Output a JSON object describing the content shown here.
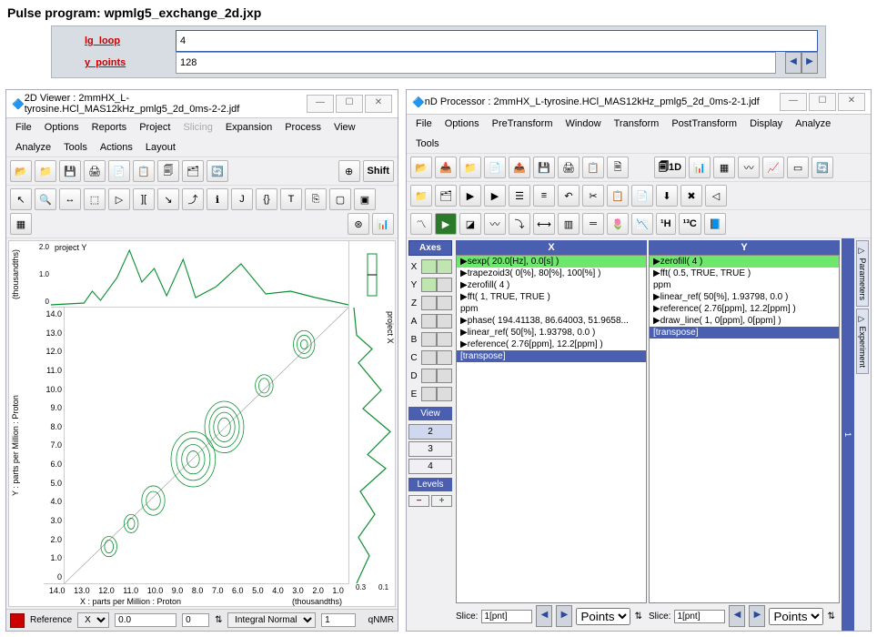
{
  "title": "Pulse program: wpmlg5_exchange_2d.jxp",
  "params": {
    "lg_loop": {
      "label": "lg_loop",
      "value": "4"
    },
    "y_points": {
      "label": "y_points",
      "value": "128"
    }
  },
  "viewer": {
    "title": "2D Viewer : 2mmHX_L-tyrosine.HCl_MAS12kHz_pmlg5_2d_0ms-2-2.jdf",
    "menus": [
      "File",
      "Options",
      "Reports",
      "Project",
      "Slicing",
      "Expansion",
      "Process",
      "View",
      "Analyze",
      "Tools",
      "Actions",
      "Layout"
    ],
    "x_ticks": [
      "14.0",
      "13.0",
      "12.0",
      "11.0",
      "10.0",
      "9.0",
      "8.0",
      "7.0",
      "6.0",
      "5.0",
      "4.0",
      "3.0",
      "2.0",
      "1.0"
    ],
    "xproj_ticks": [
      "0.3",
      "0.1"
    ],
    "y_ticks": [
      "14.0",
      "13.0",
      "12.0",
      "11.0",
      "10.0",
      "9.0",
      "8.0",
      "7.0",
      "6.0",
      "5.0",
      "4.0",
      "3.0",
      "2.0",
      "1.0",
      "0"
    ],
    "yproj_ticks": [
      "0",
      "1.0",
      "2.0"
    ],
    "y_axis_label": "Y : parts per Million : Proton",
    "yproj_unit": "(thousandths)",
    "x_axis_label": "X : parts per Million : Proton",
    "x_unit": "(thousandths)",
    "proj_y_label": "project Y",
    "proj_x_label": "project X",
    "status": {
      "ref": "Reference",
      "axis": "X",
      "v1": "0.0",
      "v2": "0",
      "int": "Integral Normal",
      "i2": "1",
      "qnmr": "qNMR"
    },
    "colors": {
      "trace": "#0a9030"
    }
  },
  "processor": {
    "title": "nD Processor : 2mmHX_L-tyrosine.HCl_MAS12kHz_pmlg5_2d_0ms-2-1.jdf",
    "menus": [
      "File",
      "Options",
      "PreTransform",
      "Window",
      "Transform",
      "PostTransform",
      "Display",
      "Analyze",
      "Tools"
    ],
    "headers": {
      "axes": "Axes",
      "x": "X",
      "y": "Y",
      "view": "View",
      "levels": "Levels"
    },
    "axes": [
      "X",
      "Y",
      "Z",
      "A",
      "B",
      "C",
      "D",
      "E"
    ],
    "views": [
      "2",
      "3",
      "4"
    ],
    "x_list": [
      {
        "t": "▶sexp( 20.0[Hz], 0.0[s] )",
        "c": "hl"
      },
      {
        "t": "▶trapezoid3( 0[%], 80[%], 100[%] )"
      },
      {
        "t": "▶zerofill( 4 )"
      },
      {
        "t": "▶fft( 1, TRUE, TRUE )"
      },
      {
        "t": "  ppm"
      },
      {
        "t": "▶phase( 194.41138, 86.64003, 51.9658..."
      },
      {
        "t": "▶linear_ref( 50[%], 1.93798, 0.0 )"
      },
      {
        "t": "▶reference( 2.76[ppm], 12.2[ppm] )"
      },
      {
        "t": "  [transpose]",
        "c": "sel"
      }
    ],
    "y_list": [
      {
        "t": "▶zerofill( 4 )",
        "c": "hl"
      },
      {
        "t": "▶fft( 0.5, TRUE, TRUE )"
      },
      {
        "t": "  ppm"
      },
      {
        "t": "▶linear_ref( 50[%], 1.93798, 0.0 )"
      },
      {
        "t": "▶reference( 2.76[ppm], 12.2[ppm] )"
      },
      {
        "t": "▶draw_line( 1, 0[ppm], 0[ppm] )"
      },
      {
        "t": "  [transpose]",
        "c": "sel"
      }
    ],
    "slice": {
      "label": "Slice:",
      "val": "1[pnt]",
      "units": "Points"
    },
    "rtabs": [
      "▷ Parameters",
      "▷ Experiment"
    ],
    "rside": "1"
  }
}
